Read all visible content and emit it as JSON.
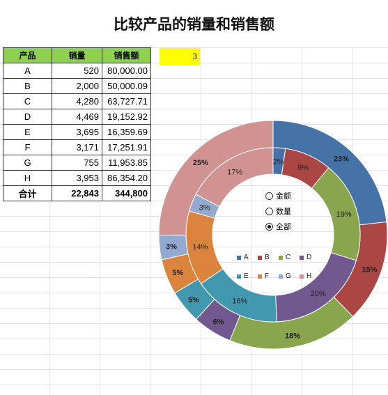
{
  "title": "比较产品的销量和销售额",
  "table": {
    "headers": [
      "产品",
      "销量",
      "销售额"
    ],
    "rows": [
      {
        "name": "A",
        "qty": "520",
        "sales": "80,000.00"
      },
      {
        "name": "B",
        "qty": "2,000",
        "sales": "50,000.09"
      },
      {
        "name": "C",
        "qty": "4,280",
        "sales": "63,727.71"
      },
      {
        "name": "D",
        "qty": "4,469",
        "sales": "19,152.92"
      },
      {
        "name": "E",
        "qty": "3,695",
        "sales": "16,359.69"
      },
      {
        "name": "F",
        "qty": "3,171",
        "sales": "17,251.91"
      },
      {
        "name": "G",
        "qty": "755",
        "sales": "11,953.85"
      },
      {
        "name": "H",
        "qty": "3,953",
        "sales": "86,354.20"
      }
    ],
    "total": {
      "name": "合计",
      "qty": "22,843",
      "sales": "344,800"
    }
  },
  "selector_cell": "3",
  "radio_options": [
    {
      "label": "金额",
      "checked": false
    },
    {
      "label": "数量",
      "checked": false
    },
    {
      "label": "全部",
      "checked": true
    }
  ],
  "chart_data": {
    "type": "donut",
    "categories": [
      "A",
      "B",
      "C",
      "D",
      "E",
      "F",
      "G",
      "H"
    ],
    "colors": [
      "#4572a7",
      "#aa4643",
      "#89a54e",
      "#71588f",
      "#4198af",
      "#db843d",
      "#93a9cf",
      "#d19392"
    ],
    "series": [
      {
        "values": [
          80000.0,
          50000.09,
          63727.71,
          19152.92,
          16359.69,
          17251.91,
          11953.85,
          86354.2
        ],
        "labels": [
          "23%",
          "15%",
          "18%",
          "6%",
          "5%",
          "5%",
          "3%",
          "25%"
        ]
      },
      {
        "values": [
          520,
          2000,
          4280,
          4469,
          3695,
          3171,
          755,
          3953
        ],
        "labels": [
          "2%",
          "9%",
          "19%",
          "20%",
          "16%",
          "14%",
          "3%",
          "17%"
        ]
      }
    ],
    "legend_position": "center"
  }
}
